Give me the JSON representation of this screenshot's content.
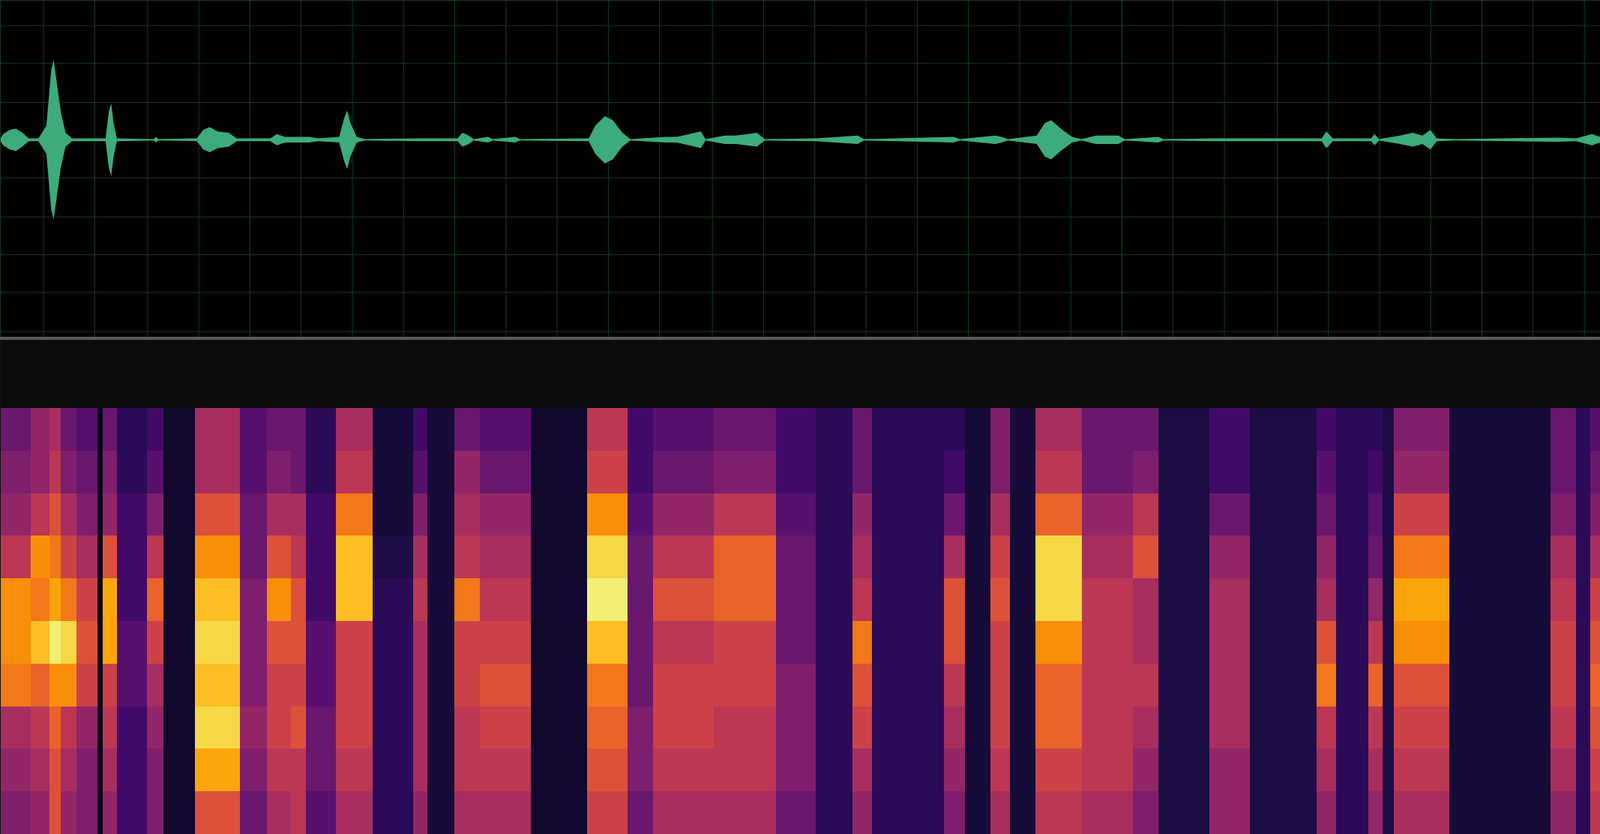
{
  "chart_data": [
    {
      "type": "area",
      "color": "#3dab7b",
      "grid": true,
      "tick_labels": false,
      "xlim": [
        0,
        100
      ],
      "ylim": [
        -1.41,
        1
      ],
      "xticks": [
        2.7,
        5.9,
        9.2,
        12.4,
        15.6,
        18.8,
        22.0,
        25.2,
        28.4,
        31.6,
        34.8,
        38.0,
        41.2,
        44.5,
        47.7,
        50.9,
        54.1,
        57.3,
        60.5,
        63.7,
        66.9,
        70.1,
        73.3,
        76.5,
        79.8,
        83.0,
        86.2,
        89.4,
        92.6,
        95.8,
        99.0
      ],
      "yticks": [
        -1.37,
        -1.09,
        -0.82,
        -0.55,
        -0.27,
        0,
        0.27,
        0.55,
        0.82
      ],
      "x": [
        0,
        0.2,
        0.6,
        1.0,
        1.4,
        1.8,
        2.4,
        2.9,
        3.2,
        3.35,
        3.5,
        3.8,
        4.1,
        4.5,
        6.6,
        6.8,
        6.95,
        7.1,
        7.3,
        9.6,
        9.75,
        9.9,
        12.3,
        12.7,
        13.1,
        13.6,
        14.3,
        14.8,
        16.9,
        17.3,
        17.8,
        18.6,
        19.3,
        19.9,
        21.2,
        21.5,
        21.7,
        21.9,
        22.3,
        22.8,
        26.4,
        28.6,
        28.9,
        29.3,
        29.6,
        30.5,
        30.8,
        32.2,
        32.5,
        36.8,
        37.2,
        37.8,
        38.3,
        38.9,
        39.4,
        41.6,
        42.3,
        43.8,
        44.1,
        45.3,
        46.0,
        47.3,
        47.8,
        51.0,
        53.6,
        54.0,
        59.6,
        60.0,
        62.2,
        62.6,
        63.0,
        64.8,
        65.3,
        65.7,
        66.3,
        67.0,
        67.6,
        68.5,
        69.9,
        70.3,
        72.4,
        72.7,
        76.0,
        77.5,
        82.6,
        82.9,
        83.3,
        85.7,
        85.9,
        86.2,
        87.5,
        88.3,
        88.9,
        89.4,
        89.8,
        91,
        97.3,
        98.5,
        99.5,
        100
      ],
      "values": [
        0.005,
        0.04,
        0.07,
        0.08,
        0.05,
        0.01,
        0.01,
        0.1,
        0.5,
        0.57,
        0.45,
        0.2,
        0.05,
        0.01,
        0.01,
        0.2,
        0.26,
        0.12,
        0.01,
        0.005,
        0.02,
        0.005,
        0.01,
        0.07,
        0.09,
        0.06,
        0.05,
        0.01,
        0.01,
        0.04,
        0.02,
        0.02,
        0.02,
        0.01,
        0.02,
        0.15,
        0.21,
        0.12,
        0.02,
        0.005,
        0.01,
        0.01,
        0.05,
        0.03,
        0.005,
        0.02,
        0.005,
        0.02,
        0.005,
        0.01,
        0.1,
        0.17,
        0.14,
        0.05,
        0.005,
        0.02,
        0.02,
        0.06,
        0.005,
        0.03,
        0.03,
        0.05,
        0.005,
        0.01,
        0.03,
        0.005,
        0.02,
        0.005,
        0.03,
        0.02,
        0.005,
        0.03,
        0.12,
        0.14,
        0.08,
        0.02,
        0.005,
        0.03,
        0.03,
        0.005,
        0.02,
        0.005,
        0.01,
        0.01,
        0.01,
        0.06,
        0.01,
        0.01,
        0.04,
        0.005,
        0.03,
        0.05,
        0.03,
        0.07,
        0.01,
        0.005,
        0.015,
        0.01,
        0.04,
        0.02
      ]
    },
    {
      "type": "heatmap",
      "color": "inferno",
      "grid": false,
      "tick_labels": false,
      "xlim": [
        0,
        100
      ],
      "ylim": [
        0,
        11.6
      ],
      "color_range": [
        0,
        1
      ],
      "bins": [
        0,
        1.9,
        3.1,
        3.8,
        4.8,
        6.1,
        6.4,
        7.3,
        9.2,
        10.2,
        12.2,
        15.0,
        16.7,
        18.2,
        19.1,
        21.0,
        23.3,
        25.8,
        26.7,
        28.4,
        30.0,
        33.2,
        36.7,
        39.2,
        40.8,
        44.6,
        48.5,
        51.0,
        53.3,
        54.5,
        59.0,
        60.3,
        61.9,
        63.1,
        64.7,
        67.6,
        70.8,
        72.4,
        75.6,
        78.1,
        82.3,
        83.5,
        85.5,
        86.4,
        87.1,
        90.6,
        96.9,
        98.5,
        99.4,
        100
      ],
      "y_bins": [
        0,
        1,
        2,
        3,
        4,
        5,
        6,
        7,
        8,
        9,
        10
      ],
      "cells": [
        [
          0.35,
          0.4,
          0.45,
          0.7,
          0.75,
          0.75,
          0.5,
          0.4,
          0.35,
          0.3
        ],
        [
          0.4,
          0.45,
          0.5,
          0.65,
          0.85,
          0.7,
          0.75,
          0.5,
          0.4,
          0.4
        ],
        [
          0.6,
          0.6,
          0.65,
          0.75,
          0.95,
          0.8,
          0.7,
          0.6,
          0.5,
          0.45
        ],
        [
          0.4,
          0.45,
          0.5,
          0.75,
          0.9,
          0.7,
          0.55,
          0.45,
          0.35,
          0.3
        ],
        [
          0.35,
          0.35,
          0.4,
          0.55,
          0.6,
          0.55,
          0.45,
          0.35,
          0.3,
          0.25
        ],
        [
          0.05,
          0.05,
          0.05,
          0.05,
          0.05,
          0.05,
          0.05,
          0.05,
          0.05,
          0.05
        ],
        [
          0.4,
          0.45,
          0.5,
          0.55,
          0.8,
          0.8,
          0.6,
          0.4,
          0.35,
          0.3
        ],
        [
          0.2,
          0.2,
          0.2,
          0.25,
          0.25,
          0.2,
          0.2,
          0.2,
          0.15,
          0.15
        ],
        [
          0.35,
          0.35,
          0.4,
          0.45,
          0.55,
          0.65,
          0.5,
          0.35,
          0.25,
          0.2
        ],
        [
          0.08,
          0.08,
          0.08,
          0.08,
          0.08,
          0.08,
          0.08,
          0.08,
          0.08,
          0.08
        ],
        [
          0.6,
          0.8,
          0.9,
          0.85,
          0.9,
          0.85,
          0.75,
          0.6,
          0.45,
          0.45
        ],
        [
          0.3,
          0.35,
          0.4,
          0.35,
          0.35,
          0.35,
          0.3,
          0.3,
          0.25,
          0.25
        ],
        [
          0.45,
          0.5,
          0.55,
          0.55,
          0.6,
          0.75,
          0.6,
          0.45,
          0.35,
          0.3
        ],
        [
          0.5,
          0.5,
          0.6,
          0.55,
          0.6,
          0.6,
          0.5,
          0.45,
          0.3,
          0.3
        ],
        [
          0.25,
          0.3,
          0.3,
          0.25,
          0.25,
          0.2,
          0.2,
          0.2,
          0.15,
          0.15
        ],
        [
          0.45,
          0.5,
          0.55,
          0.55,
          0.55,
          0.85,
          0.85,
          0.7,
          0.5,
          0.45
        ],
        [
          0.15,
          0.15,
          0.15,
          0.15,
          0.15,
          0.15,
          0.12,
          0.1,
          0.1,
          0.1
        ],
        [
          0.4,
          0.45,
          0.45,
          0.45,
          0.45,
          0.5,
          0.45,
          0.35,
          0.25,
          0.2
        ],
        [
          0.1,
          0.1,
          0.1,
          0.1,
          0.1,
          0.1,
          0.1,
          0.1,
          0.1,
          0.1
        ],
        [
          0.45,
          0.5,
          0.5,
          0.55,
          0.55,
          0.7,
          0.5,
          0.45,
          0.4,
          0.3
        ],
        [
          0.45,
          0.5,
          0.55,
          0.6,
          0.55,
          0.5,
          0.45,
          0.4,
          0.3,
          0.25
        ],
        [
          0.08,
          0.08,
          0.08,
          0.08,
          0.08,
          0.08,
          0.08,
          0.08,
          0.08,
          0.08
        ],
        [
          0.55,
          0.6,
          0.65,
          0.7,
          0.85,
          0.95,
          0.9,
          0.75,
          0.55,
          0.5
        ],
        [
          0.3,
          0.35,
          0.35,
          0.3,
          0.3,
          0.3,
          0.3,
          0.25,
          0.2,
          0.2
        ],
        [
          0.45,
          0.5,
          0.55,
          0.55,
          0.5,
          0.6,
          0.5,
          0.4,
          0.3,
          0.25
        ],
        [
          0.45,
          0.5,
          0.5,
          0.55,
          0.55,
          0.65,
          0.65,
          0.5,
          0.35,
          0.3
        ],
        [
          0.3,
          0.35,
          0.35,
          0.35,
          0.3,
          0.3,
          0.3,
          0.25,
          0.2,
          0.2
        ],
        [
          0.15,
          0.15,
          0.15,
          0.15,
          0.15,
          0.15,
          0.15,
          0.15,
          0.15,
          0.15
        ],
        [
          0.4,
          0.45,
          0.55,
          0.6,
          0.7,
          0.5,
          0.45,
          0.4,
          0.3,
          0.3
        ],
        [
          0.15,
          0.15,
          0.15,
          0.15,
          0.15,
          0.15,
          0.15,
          0.15,
          0.15,
          0.15
        ],
        [
          0.35,
          0.4,
          0.45,
          0.5,
          0.6,
          0.6,
          0.45,
          0.3,
          0.2,
          0.15
        ],
        [
          0.1,
          0.1,
          0.1,
          0.1,
          0.1,
          0.1,
          0.1,
          0.1,
          0.1,
          0.1
        ],
        [
          0.45,
          0.5,
          0.55,
          0.55,
          0.55,
          0.6,
          0.55,
          0.45,
          0.35,
          0.35
        ],
        [
          0.1,
          0.1,
          0.1,
          0.1,
          0.1,
          0.1,
          0.1,
          0.1,
          0.1,
          0.1
        ],
        [
          0.5,
          0.55,
          0.65,
          0.65,
          0.75,
          0.9,
          0.9,
          0.65,
          0.5,
          0.45
        ],
        [
          0.45,
          0.5,
          0.5,
          0.5,
          0.5,
          0.5,
          0.45,
          0.4,
          0.3,
          0.3
        ],
        [
          0.35,
          0.4,
          0.45,
          0.5,
          0.45,
          0.45,
          0.6,
          0.5,
          0.35,
          0.3
        ],
        [
          0.12,
          0.12,
          0.12,
          0.12,
          0.12,
          0.12,
          0.12,
          0.12,
          0.12,
          0.12
        ],
        [
          0.4,
          0.4,
          0.45,
          0.45,
          0.45,
          0.45,
          0.4,
          0.3,
          0.2,
          0.2
        ],
        [
          0.12,
          0.12,
          0.12,
          0.12,
          0.12,
          0.12,
          0.12,
          0.12,
          0.12,
          0.12
        ],
        [
          0.4,
          0.45,
          0.5,
          0.7,
          0.6,
          0.45,
          0.4,
          0.3,
          0.25,
          0.2
        ],
        [
          0.15,
          0.15,
          0.15,
          0.15,
          0.15,
          0.15,
          0.15,
          0.15,
          0.15,
          0.15
        ],
        [
          0.4,
          0.45,
          0.5,
          0.65,
          0.5,
          0.4,
          0.3,
          0.25,
          0.2,
          0.15
        ],
        [
          0.12,
          0.12,
          0.12,
          0.12,
          0.12,
          0.12,
          0.12,
          0.12,
          0.12,
          0.12
        ],
        [
          0.45,
          0.5,
          0.55,
          0.6,
          0.75,
          0.8,
          0.7,
          0.55,
          0.4,
          0.35
        ],
        [
          0.1,
          0.1,
          0.1,
          0.1,
          0.1,
          0.1,
          0.1,
          0.1,
          0.1,
          0.1
        ],
        [
          0.4,
          0.45,
          0.5,
          0.55,
          0.55,
          0.5,
          0.45,
          0.35,
          0.3,
          0.3
        ],
        [
          0.15,
          0.15,
          0.15,
          0.15,
          0.15,
          0.15,
          0.15,
          0.15,
          0.15,
          0.15
        ],
        [
          0.5,
          0.55,
          0.6,
          0.65,
          0.6,
          0.55,
          0.45,
          0.35,
          0.3,
          0.25
        ]
      ]
    }
  ]
}
